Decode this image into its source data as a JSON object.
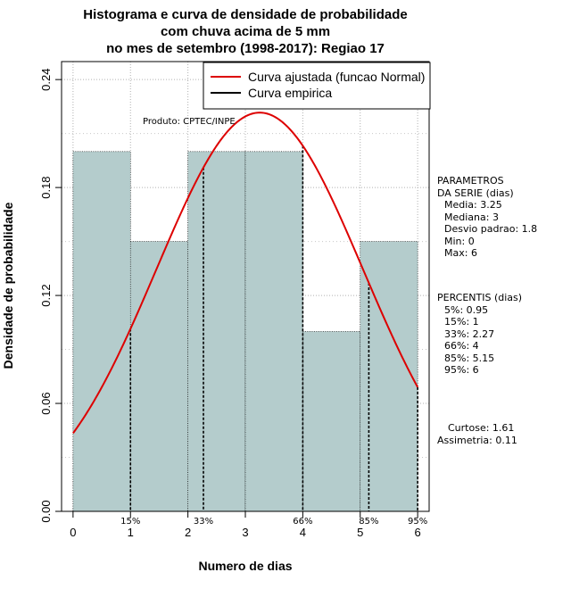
{
  "chart_data": {
    "type": "bar",
    "title_lines": [
      "Histograma e curva de densidade de probabilidade",
      "com chuva acima de 5 mm",
      "no mes de setembro (1998-2017): Regiao 17"
    ],
    "xlabel": "Numero de dias",
    "ylabel": "Densidade de probabilidade",
    "xlim": [
      -0.2,
      6.2
    ],
    "ylim": [
      0.0,
      0.25
    ],
    "x_ticks": [
      "0",
      "1",
      "2",
      "3",
      "4",
      "5",
      "6"
    ],
    "y_ticks": [
      "0.00",
      "0.06",
      "0.12",
      "0.18",
      "0.24"
    ],
    "bins": [
      {
        "start": 0,
        "end": 1,
        "value": 0.2
      },
      {
        "start": 1,
        "end": 2,
        "value": 0.15
      },
      {
        "start": 2,
        "end": 3,
        "value": 0.2
      },
      {
        "start": 3,
        "end": 4,
        "value": 0.2
      },
      {
        "start": 4,
        "end": 5,
        "value": 0.1
      },
      {
        "start": 5,
        "end": 6,
        "value": 0.15
      }
    ],
    "fitted_curve": {
      "name": "Curva ajustada (funcao Normal)",
      "mean": 3.25,
      "sd": 1.8,
      "color": "#dd0000"
    },
    "empirical_curve": {
      "name": "Curva empirica",
      "color": "#000000"
    },
    "percentile_markers": [
      {
        "label": "15%",
        "x": 1
      },
      {
        "label": "33%",
        "x": 2.27
      },
      {
        "label": "66%",
        "x": 4
      },
      {
        "label": "85%",
        "x": 5.15
      },
      {
        "label": "95%",
        "x": 6
      }
    ],
    "annotation": "Produto: CPTEC/INPE",
    "bar_color": "#b4cccc",
    "grid": true,
    "legend_position": "top-right"
  },
  "side_panel": {
    "parametros_title": [
      "PARAMETROS",
      "DA SERIE (dias)"
    ],
    "parametros": [
      "Media: 3.25",
      "Mediana: 3",
      "Desvio padrao: 1.8",
      "Min: 0",
      "Max: 6"
    ],
    "percentis_title": "PERCENTIS (dias)",
    "percentis": [
      "5%: 0.95",
      "15%: 1",
      "33%: 2.27",
      "66%: 4",
      "85%: 5.15",
      "95%: 6"
    ],
    "curtose": "Curtose: 1.61",
    "assimetria": "Assimetria: 0.11"
  }
}
